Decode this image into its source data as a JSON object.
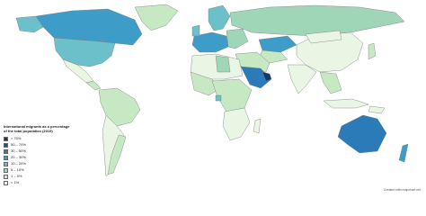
{
  "legend": {
    "title": "International migrants as a percentage of the total population (2019)",
    "items": [
      {
        "label": "> 70%",
        "color": "#0b3a6b"
      },
      {
        "label": "50 – 70%",
        "color": "#12568f"
      },
      {
        "label": "30 – 50%",
        "color": "#2a7bb8"
      },
      {
        "label": "20 – 30%",
        "color": "#3e9dc8"
      },
      {
        "label": "10 – 20%",
        "color": "#6cc0c9"
      },
      {
        "label": "5 – 10%",
        "color": "#9fd6b8"
      },
      {
        "label": "1 – 5%",
        "color": "#c6e8c3"
      },
      {
        "label": "< 1%",
        "color": "#eaf6e4"
      }
    ]
  },
  "credit": "Created with mapchart.net"
}
